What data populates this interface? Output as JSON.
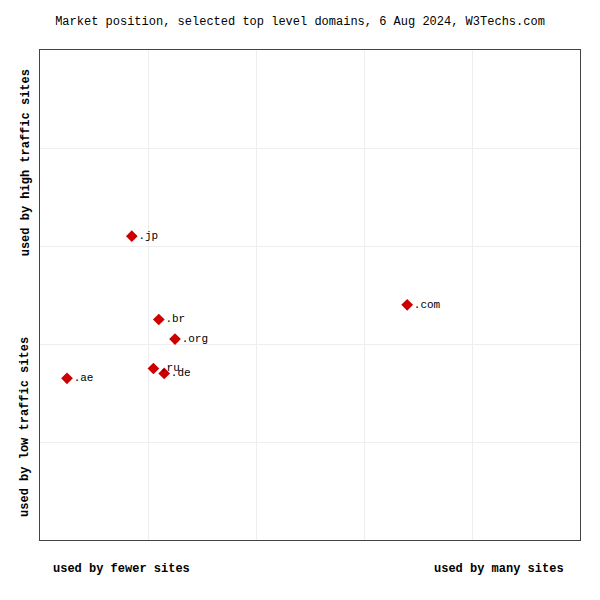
{
  "chart_data": {
    "type": "scatter",
    "title": "Market position, selected top level domains, 6 Aug 2024, W3Techs.com",
    "xlabel_left": "used by fewer sites",
    "xlabel_right": "used by many sites",
    "ylabel_top": "used by high traffic sites",
    "ylabel_bottom": "used by low traffic sites",
    "labels": [
      ".jp",
      ".br",
      ".org",
      ".ru",
      ".de",
      ".ae",
      ".com"
    ],
    "x": [
      17,
      22,
      25,
      21,
      23,
      5,
      68
    ],
    "values": [
      62,
      45,
      41,
      35,
      34,
      33,
      48
    ],
    "color": "#cc0000",
    "marker": "diamond",
    "xlim": [
      0,
      100
    ],
    "ylim": [
      0,
      100
    ],
    "xticks": [
      0,
      20,
      40,
      60,
      80,
      100
    ],
    "yticks": [
      0,
      20,
      40,
      60,
      80,
      100
    ],
    "grid": true,
    "tick_labels": false
  }
}
